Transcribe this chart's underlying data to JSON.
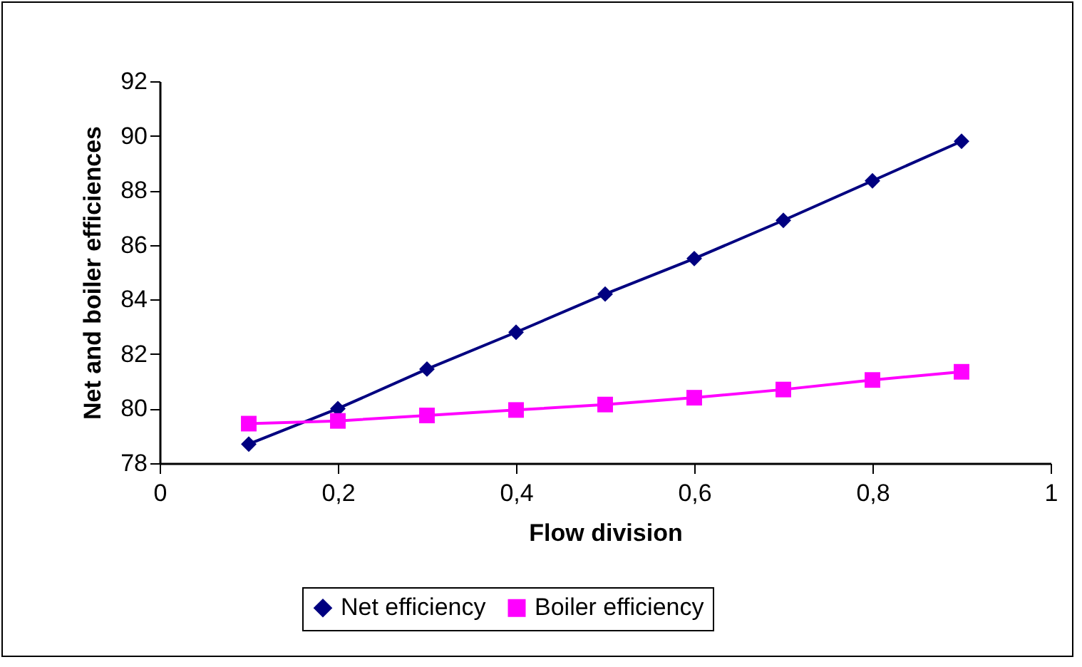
{
  "chart_data": {
    "type": "line",
    "xlabel": "Flow division",
    "ylabel": "Net and boiler efficiences",
    "x": [
      0.1,
      0.2,
      0.3,
      0.4,
      0.5,
      0.6,
      0.7,
      0.8,
      0.9
    ],
    "series": [
      {
        "name": "Net efficiency",
        "color": "#000080",
        "marker": "diamond",
        "values": [
          78.7,
          80.0,
          81.45,
          82.8,
          84.2,
          85.5,
          86.9,
          88.35,
          89.8
        ]
      },
      {
        "name": "Boiler efficiency",
        "color": "#ff00ff",
        "marker": "square",
        "values": [
          79.45,
          79.55,
          79.75,
          79.95,
          80.15,
          80.4,
          80.7,
          81.05,
          81.35
        ]
      }
    ],
    "xlim": [
      0,
      1
    ],
    "xticks": [
      0,
      {
        "value": 0.2,
        "label": "0,2"
      },
      {
        "value": 0.4,
        "label": "0,4"
      },
      {
        "value": 0.6,
        "label": "0,6"
      },
      {
        "value": 0.8,
        "label": "0,8"
      },
      1
    ],
    "ylim": [
      78,
      92
    ],
    "yticks": [
      78,
      80,
      82,
      84,
      86,
      88,
      90,
      92
    ],
    "legend": "bottom",
    "grid": false
  }
}
